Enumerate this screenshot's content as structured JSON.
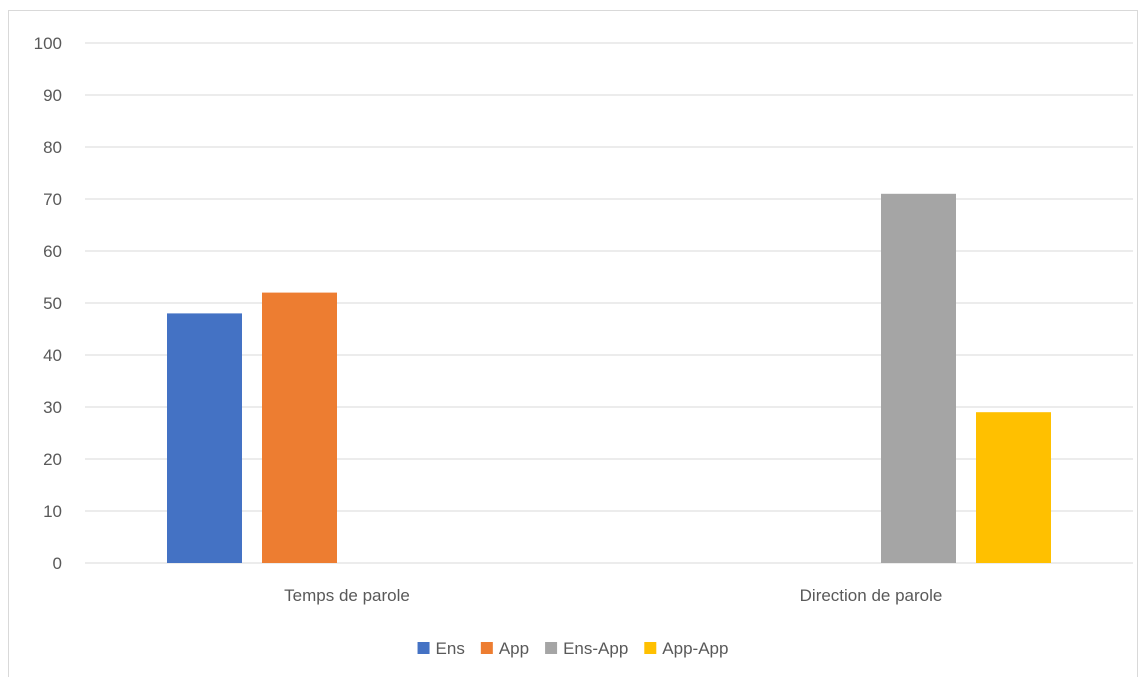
{
  "chart_data": {
    "type": "bar",
    "categories": [
      "Temps de parole",
      "Direction de parole"
    ],
    "series": [
      {
        "name": "Ens",
        "values": [
          48,
          null
        ],
        "color": "#4472C4"
      },
      {
        "name": "App",
        "values": [
          52,
          null
        ],
        "color": "#ED7D31"
      },
      {
        "name": "Ens-App",
        "values": [
          null,
          71
        ],
        "color": "#A5A5A5"
      },
      {
        "name": "App-App",
        "values": [
          null,
          29
        ],
        "color": "#FFC000"
      }
    ],
    "yticks": [
      "0",
      "10",
      "20",
      "30",
      "40",
      "50",
      "60",
      "70",
      "80",
      "90",
      "100"
    ],
    "ylim": [
      0,
      100
    ],
    "grid": true,
    "legend": "bottom",
    "gridline_color": "#d9d9d9"
  }
}
